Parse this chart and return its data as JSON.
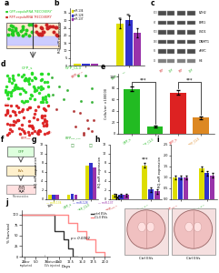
{
  "bg_color": "#ffffff",
  "panel_b": {
    "bars": {
      "miR-134": [
        1.0,
        28.0
      ],
      "miR-128": [
        1.0,
        30.0
      ],
      "miR-137": [
        1.0,
        22.0
      ]
    },
    "colors": [
      "#dddd00",
      "#3333cc",
      "#9933aa"
    ],
    "ylim": [
      0,
      38
    ]
  },
  "panel_c": {
    "bands": [
      "EZH2",
      "BMI1",
      "LSD1",
      "DNMT1",
      "cMYC",
      "H3"
    ],
    "sizes": [
      "100",
      "67",
      "500",
      "180",
      "65",
      "15"
    ]
  },
  "panel_e": {
    "values": [
      78,
      13,
      72,
      28
    ],
    "colors": [
      "#22bb22",
      "#22bb22",
      "#dd2222",
      "#dd8822"
    ],
    "error": [
      4,
      2,
      4,
      3
    ],
    "ylim": [
      0,
      100
    ]
  },
  "panel_g": {
    "bars": {
      "miR-134": [
        1.0,
        1.1,
        7.5
      ],
      "miR-128": [
        1.0,
        1.2,
        8.0
      ],
      "miR-137": [
        1.0,
        1.0,
        7.0
      ]
    },
    "colors": [
      "#dddd00",
      "#3333cc",
      "#9933aa"
    ],
    "ylim": [
      0,
      12
    ]
  },
  "panel_h": {
    "bars": {
      "miR-134": [
        1.0,
        7.5
      ],
      "miR-128": [
        1.0,
        2.2
      ],
      "miR-137": [
        1.0,
        1.8
      ]
    },
    "colors": [
      "#dddd00",
      "#3333cc",
      "#9933aa"
    ],
    "ylim": [
      0,
      12
    ]
  },
  "panel_i": {
    "bars": {
      "miR-134": [
        1.0,
        1.4
      ],
      "miR-128": [
        1.0,
        1.2
      ],
      "miR-137": [
        1.0,
        1.1
      ]
    },
    "colors": [
      "#dddd00",
      "#3333cc",
      "#9933aa"
    ],
    "ylim": [
      0,
      2.5
    ]
  },
  "panel_j": {
    "ctrl_x": [
      2,
      7,
      9,
      11,
      12,
      13,
      14
    ],
    "ctrl_y": [
      100,
      100,
      60,
      40,
      20,
      0,
      0
    ],
    "cl3_x": [
      2,
      7,
      12,
      14,
      16,
      18,
      20
    ],
    "cl3_y": [
      100,
      100,
      80,
      60,
      40,
      10,
      0
    ],
    "pvalue": "p = 0.0002"
  }
}
